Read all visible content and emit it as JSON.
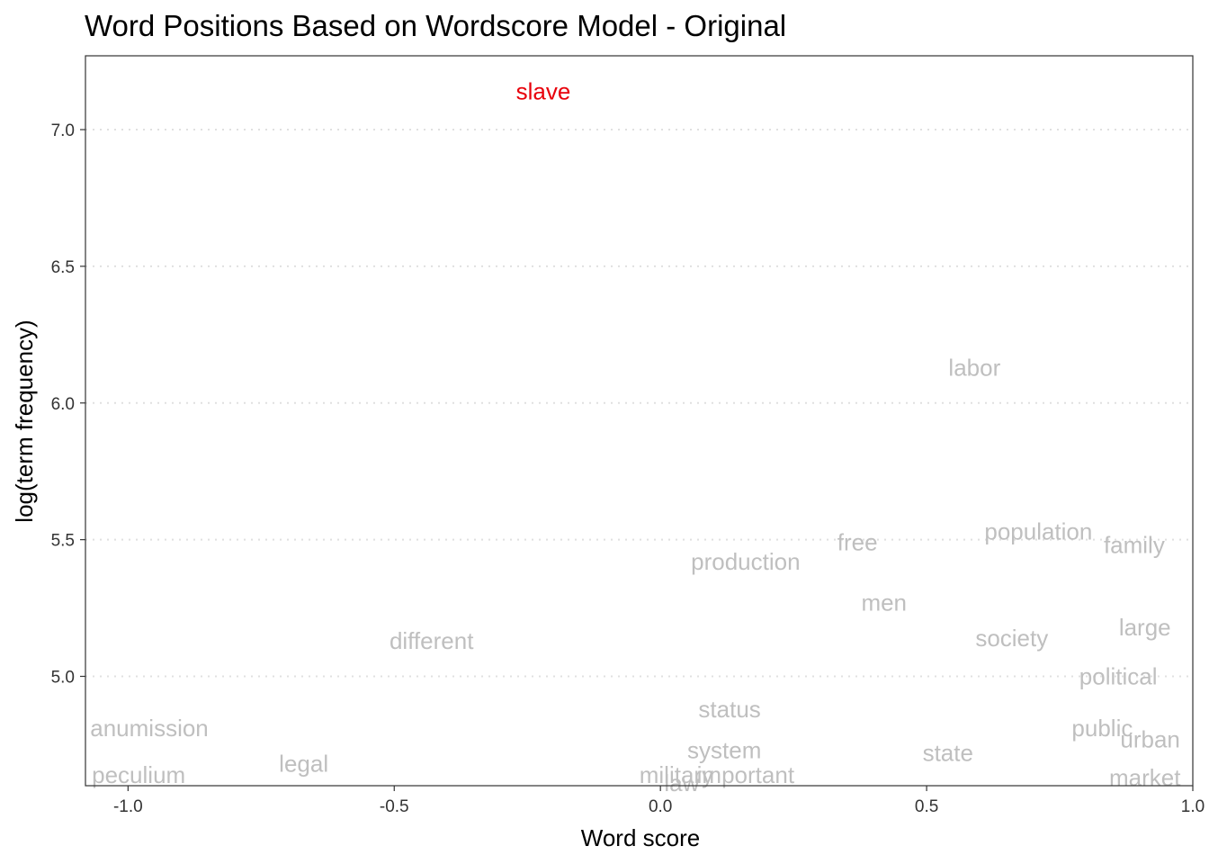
{
  "chart_data": {
    "type": "scatter",
    "title": "Word Positions Based on Wordscore Model - Original",
    "xlabel": "Word score",
    "ylabel": "log(term frequency)",
    "xlim": [
      -1.08,
      1.0
    ],
    "ylim": [
      4.6,
      7.27
    ],
    "x_ticks": [
      -1.0,
      -0.5,
      0.0,
      0.5,
      1.0
    ],
    "x_tick_labels": [
      "-1.0",
      "-0.5",
      "0.0",
      "0.5",
      "1.0"
    ],
    "y_ticks": [
      5.0,
      5.5,
      6.0,
      6.5,
      7.0
    ],
    "y_tick_labels": [
      "5.0",
      "5.5",
      "6.0",
      "6.5",
      "7.0"
    ],
    "grid": "horizontal dotted",
    "colors": {
      "highlight": "#e8000b",
      "default": "#bfbfbf"
    },
    "points": [
      {
        "word": "slave",
        "x": -0.22,
        "y": 7.14,
        "highlight": true
      },
      {
        "word": "labor",
        "x": 0.59,
        "y": 6.13,
        "highlight": false
      },
      {
        "word": "population",
        "x": 0.71,
        "y": 5.53,
        "highlight": false
      },
      {
        "word": "family",
        "x": 0.89,
        "y": 5.48,
        "highlight": false
      },
      {
        "word": "free",
        "x": 0.37,
        "y": 5.49,
        "highlight": false
      },
      {
        "word": "production",
        "x": 0.16,
        "y": 5.42,
        "highlight": false
      },
      {
        "word": "men",
        "x": 0.42,
        "y": 5.27,
        "highlight": false
      },
      {
        "word": "large",
        "x": 0.91,
        "y": 5.18,
        "highlight": false
      },
      {
        "word": "different",
        "x": -0.43,
        "y": 5.13,
        "highlight": false
      },
      {
        "word": "society",
        "x": 0.66,
        "y": 5.14,
        "highlight": false
      },
      {
        "word": "political",
        "x": 0.86,
        "y": 5.0,
        "highlight": false
      },
      {
        "word": "status",
        "x": 0.13,
        "y": 4.88,
        "highlight": false
      },
      {
        "word": "anumission",
        "x": -0.96,
        "y": 4.81,
        "highlight": false
      },
      {
        "word": "public",
        "x": 0.83,
        "y": 4.81,
        "highlight": false
      },
      {
        "word": "urban",
        "x": 0.92,
        "y": 4.77,
        "highlight": false
      },
      {
        "word": "system",
        "x": 0.12,
        "y": 4.73,
        "highlight": false
      },
      {
        "word": "state",
        "x": 0.54,
        "y": 4.72,
        "highlight": false
      },
      {
        "word": "legal",
        "x": -0.67,
        "y": 4.68,
        "highlight": false
      },
      {
        "word": "military",
        "x": 0.03,
        "y": 4.64,
        "highlight": false
      },
      {
        "word": "important",
        "x": 0.16,
        "y": 4.64,
        "highlight": false
      },
      {
        "word": "peculium",
        "x": -0.98,
        "y": 4.64,
        "highlight": false
      },
      {
        "word": "market",
        "x": 0.91,
        "y": 4.63,
        "highlight": false
      },
      {
        "word": "law",
        "x": 0.04,
        "y": 4.61,
        "highlight": false
      }
    ]
  }
}
